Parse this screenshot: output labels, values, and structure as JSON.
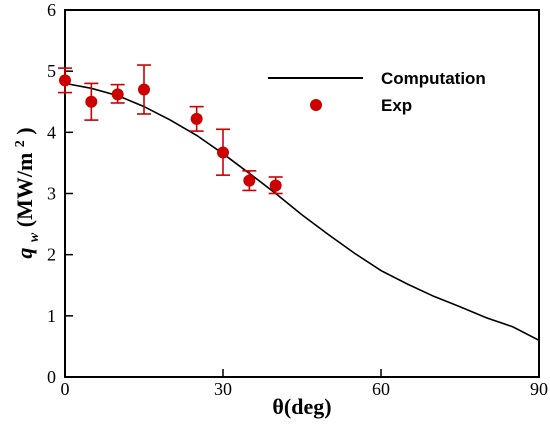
{
  "chart_data": {
    "type": "line",
    "title": "",
    "xlabel": "θ(deg)",
    "ylabel": {
      "main": "q",
      "subscript": "w",
      "unit_prefix": "(MW/m",
      "unit_superscript": "2",
      "unit_suffix": ")"
    },
    "xlim": [
      0,
      90
    ],
    "ylim": [
      0,
      6
    ],
    "xticks": [
      0,
      30,
      60,
      90
    ],
    "yticks": [
      0,
      1,
      2,
      3,
      4,
      5,
      6
    ],
    "grid": false,
    "legend_position": "top-right",
    "series": [
      {
        "name": "Computation",
        "kind": "line",
        "color": "#000000",
        "x": [
          0,
          5,
          10,
          15,
          20,
          25,
          30,
          35,
          40,
          45,
          50,
          55,
          60,
          65,
          70,
          75,
          80,
          85,
          90
        ],
        "y": [
          4.8,
          4.72,
          4.6,
          4.42,
          4.2,
          3.95,
          3.65,
          3.33,
          3.0,
          2.65,
          2.33,
          2.02,
          1.74,
          1.52,
          1.32,
          1.15,
          0.97,
          0.82,
          0.6
        ]
      },
      {
        "name": "Exp",
        "kind": "scatter",
        "color": "#cc0000",
        "x": [
          0,
          5,
          10,
          15,
          25,
          30,
          35,
          40
        ],
        "y": [
          4.85,
          4.5,
          4.62,
          4.7,
          4.22,
          3.67,
          3.21,
          3.13
        ],
        "error_low": [
          4.65,
          4.2,
          4.48,
          4.3,
          4.02,
          3.3,
          3.05,
          3.0
        ],
        "error_high": [
          5.05,
          4.8,
          4.78,
          5.1,
          4.42,
          4.05,
          3.37,
          3.27
        ]
      }
    ]
  }
}
